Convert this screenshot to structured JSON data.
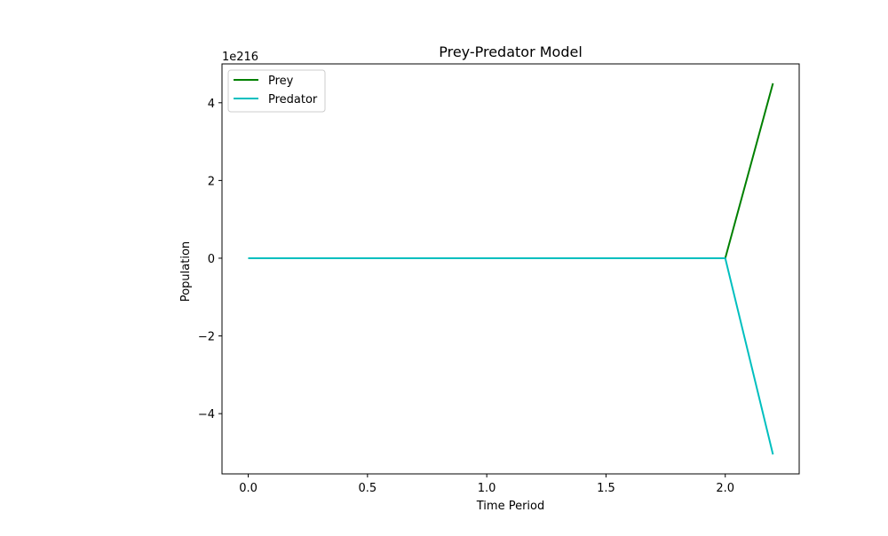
{
  "chart_data": {
    "type": "line",
    "title": "Prey-Predator Model",
    "xlabel": "Time Period",
    "ylabel": "Population",
    "y_offset_label": "1e216",
    "xlim": [
      -0.11,
      2.31
    ],
    "ylim": [
      -5.55,
      5.0
    ],
    "x_ticks": [
      0.0,
      0.5,
      1.0,
      1.5,
      2.0
    ],
    "x_tick_labels": [
      "0.0",
      "0.5",
      "1.0",
      "1.5",
      "2.0"
    ],
    "y_ticks": [
      -4,
      -2,
      0,
      2,
      4
    ],
    "y_tick_labels": [
      "−4",
      "−2",
      "0",
      "2",
      "4"
    ],
    "grid": false,
    "legend_position": "upper-left",
    "series": [
      {
        "name": "Prey",
        "color": "#008000",
        "x": [
          0.0,
          2.0,
          2.2
        ],
        "y": [
          0.0,
          0.0,
          4.5
        ]
      },
      {
        "name": "Predator",
        "color": "#00bfbf",
        "x": [
          0.0,
          2.0,
          2.2
        ],
        "y": [
          0.0,
          0.0,
          -5.05
        ]
      }
    ]
  }
}
